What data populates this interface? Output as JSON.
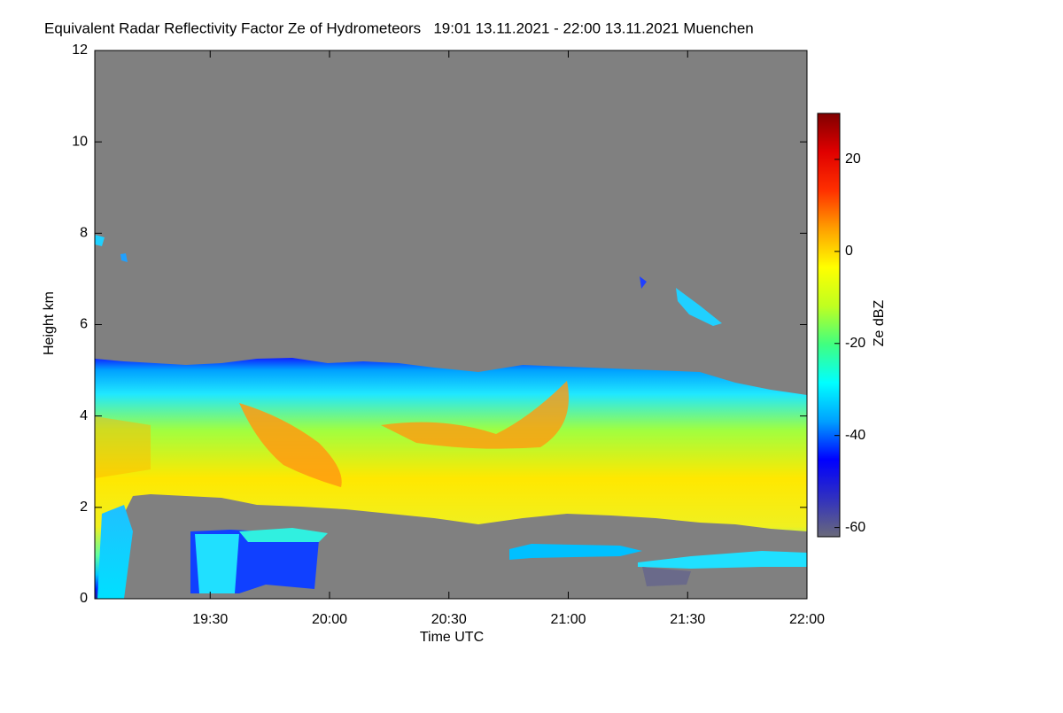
{
  "chart_data": {
    "type": "heatmap",
    "title": "Equivalent Radar Reflectivity Factor Ze of Hydrometeors   19:01 13.11.2021 - 22:00 13.11.2021 Muenchen",
    "x_label": "Time UTC",
    "y_label": "Height km",
    "colorbar_label": "Ze dBZ",
    "xlim": [
      "2021-11-13 19:01",
      "2021-11-13 22:00"
    ],
    "xticks": [
      {
        "value": "2021-11-13 19:30",
        "label": "19:30"
      },
      {
        "value": "2021-11-13 20:00",
        "label": "20:00"
      },
      {
        "value": "2021-11-13 20:30",
        "label": "20:30"
      },
      {
        "value": "2021-11-13 21:00",
        "label": "21:00"
      },
      {
        "value": "2021-11-13 21:30",
        "label": "21:30"
      },
      {
        "value": "2021-11-13 22:00",
        "label": "22:00"
      }
    ],
    "ylim": [
      0,
      12
    ],
    "yticks": [
      0,
      2,
      4,
      6,
      8,
      10,
      12
    ],
    "clim": [
      -62,
      30
    ],
    "cticks": [
      -60,
      -40,
      -20,
      0,
      20
    ],
    "colormap": [
      "#6a6a7a",
      "#3030c0",
      "#0000ff",
      "#00a0ff",
      "#00ffff",
      "#40ff80",
      "#c0ff20",
      "#ffff00",
      "#ffa000",
      "#ff3000",
      "#e00000",
      "#800000"
    ]
  }
}
